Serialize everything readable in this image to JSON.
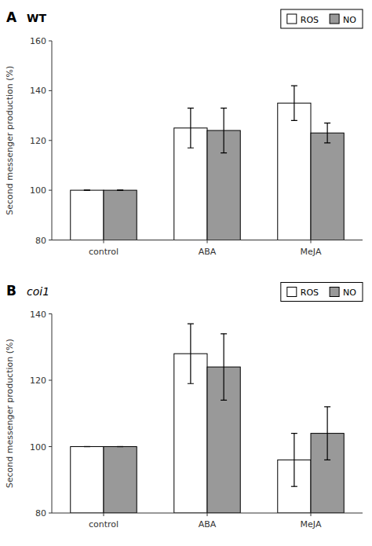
{
  "chart_data": [
    {
      "type": "bar",
      "title": "WT",
      "annotations": [
        "A"
      ],
      "categories": [
        "control",
        "ABA",
        "MeJA"
      ],
      "series": [
        {
          "name": "ROS",
          "color": "#ffffff",
          "values": [
            100,
            125,
            135
          ],
          "errors": [
            0,
            8,
            7
          ]
        },
        {
          "name": "NO",
          "color": "#999999",
          "values": [
            100,
            124,
            123
          ],
          "errors": [
            0,
            9,
            4
          ]
        }
      ],
      "ylabel": "Second messenger production (%)",
      "ylim": [
        80,
        160
      ],
      "yticks": [
        80,
        100,
        120,
        140,
        160
      ],
      "grid": false,
      "legend": "right"
    },
    {
      "type": "bar",
      "title": "coi1",
      "annotations": [
        "B"
      ],
      "categories": [
        "control",
        "ABA",
        "MeJA"
      ],
      "series": [
        {
          "name": "ROS",
          "color": "#ffffff",
          "values": [
            100,
            128,
            96
          ],
          "errors": [
            0,
            9,
            8
          ]
        },
        {
          "name": "NO",
          "color": "#999999",
          "values": [
            100,
            124,
            104
          ],
          "errors": [
            0,
            10,
            8
          ]
        }
      ],
      "ylabel": "Second messenger production (%)",
      "ylim": [
        80,
        140
      ],
      "yticks": [
        80,
        100,
        120,
        140
      ],
      "grid": false,
      "legend": "right"
    }
  ]
}
